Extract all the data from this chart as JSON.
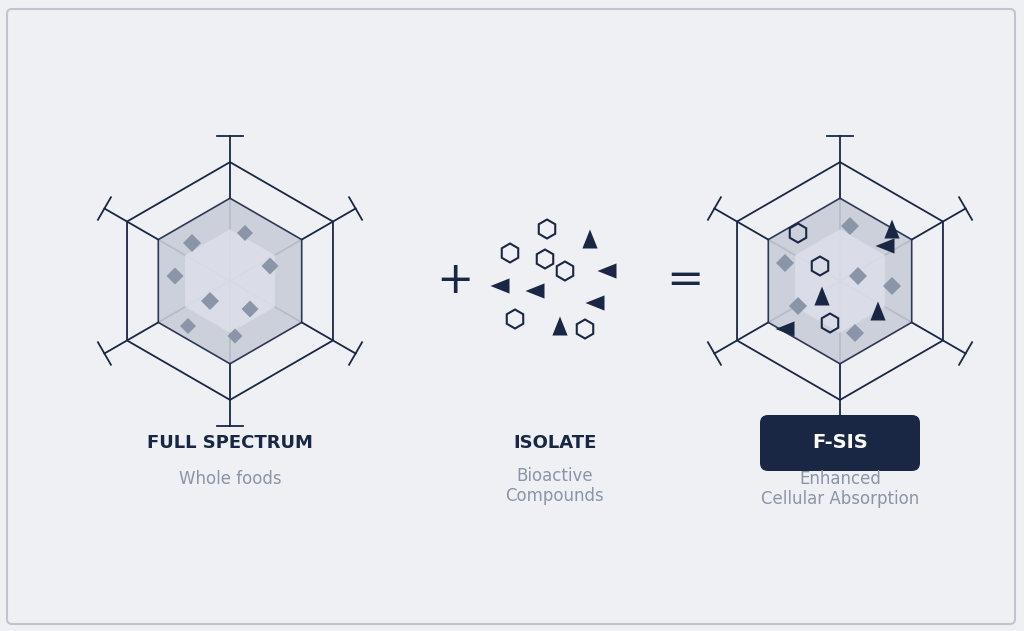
{
  "bg_color": "#eef0f4",
  "border_color": "#c0c5d0",
  "dark_navy": "#1a2744",
  "hex_outline_color": "#1a2744",
  "hex_fill_gradient_light": "#dce0ea",
  "hex_fill_gradient_dark": "#b8bfcc",
  "diamond_color": "#8a95a8",
  "triangle_color": "#1a2744",
  "hexagon_outline_small_color": "#1a2744",
  "label1": "FULL SPECTRUM",
  "label2": "ISOLATE",
  "label3": "F-SIS",
  "sublabel1": "Whole foods",
  "sublabel2": "Bioactive\nCompounds",
  "sublabel3": "Enhanced\nCellular Absorption",
  "plus_sign": "+",
  "equals_sign": "=",
  "title_fontsize": 13,
  "sublabel_fontsize": 12,
  "operator_fontsize": 28
}
